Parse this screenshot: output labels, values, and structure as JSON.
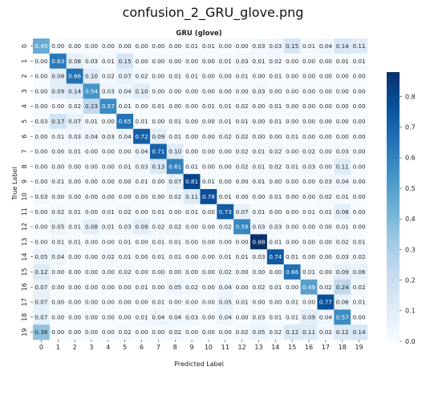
{
  "file_title": "confusion_2_GRU_glove.png",
  "chart_data": {
    "type": "heatmap",
    "title": "GRU (glove)",
    "xlabel": "Predicted Label",
    "ylabel": "True Label",
    "x_ticks": [
      "0",
      "1",
      "2",
      "3",
      "4",
      "5",
      "6",
      "7",
      "8",
      "9",
      "10",
      "11",
      "12",
      "13",
      "14",
      "15",
      "16",
      "17",
      "18",
      "19"
    ],
    "y_ticks": [
      "0",
      "1",
      "2",
      "3",
      "4",
      "5",
      "6",
      "7",
      "8",
      "9",
      "10",
      "11",
      "12",
      "13",
      "14",
      "15",
      "16",
      "17",
      "18",
      "19"
    ],
    "colorbar_ticks": [
      "0.0",
      "0.1",
      "0.2",
      "0.3",
      "0.4",
      "0.5",
      "0.6",
      "0.7",
      "0.8"
    ],
    "colorbar_range": [
      0,
      0.88
    ],
    "colormap": [
      "#f7fbff",
      "#deebf7",
      "#c6dbef",
      "#9ecae1",
      "#6baed6",
      "#4292c6",
      "#2171b5",
      "#08519c",
      "#08306b"
    ],
    "matrix": [
      [
        0.45,
        0.0,
        0.0,
        0.0,
        0.0,
        0.0,
        0.0,
        0.0,
        0.0,
        0.01,
        0.01,
        0.0,
        0.0,
        0.03,
        0.03,
        0.15,
        0.01,
        0.04,
        0.14,
        0.11
      ],
      [
        0.0,
        0.63,
        0.08,
        0.03,
        0.01,
        0.15,
        0.0,
        0.0,
        0.0,
        0.0,
        0.0,
        0.01,
        0.03,
        0.01,
        0.02,
        0.0,
        0.0,
        0.0,
        0.01,
        0.01
      ],
      [
        0.0,
        0.08,
        0.66,
        0.1,
        0.02,
        0.07,
        0.02,
        0.0,
        0.01,
        0.01,
        0.0,
        0.0,
        0.01,
        0.0,
        0.01,
        0.0,
        0.0,
        0.0,
        0.0,
        0.0
      ],
      [
        0.0,
        0.09,
        0.14,
        0.54,
        0.03,
        0.04,
        0.1,
        0.0,
        0.0,
        0.0,
        0.0,
        0.0,
        0.0,
        0.03,
        0.0,
        0.0,
        0.0,
        0.0,
        0.0,
        0.0
      ],
      [
        0.0,
        0.0,
        0.02,
        0.23,
        0.57,
        0.01,
        0.0,
        0.01,
        0.0,
        0.0,
        0.01,
        0.01,
        0.02,
        0.0,
        0.01,
        0.0,
        0.0,
        0.0,
        0.0,
        0.0
      ],
      [
        0.03,
        0.17,
        0.07,
        0.01,
        0.0,
        0.65,
        0.01,
        0.0,
        0.01,
        0.0,
        0.0,
        0.01,
        0.01,
        0.0,
        0.01,
        0.0,
        0.0,
        0.0,
        0.0,
        0.0
      ],
      [
        0.0,
        0.01,
        0.03,
        0.04,
        0.03,
        0.04,
        0.72,
        0.09,
        0.01,
        0.0,
        0.0,
        0.02,
        0.02,
        0.0,
        0.0,
        0.01,
        0.0,
        0.0,
        0.0,
        0.0
      ],
      [
        0.0,
        0.0,
        0.01,
        0.0,
        0.0,
        0.0,
        0.04,
        0.71,
        0.1,
        0.0,
        0.0,
        0.0,
        0.02,
        0.01,
        0.02,
        0.0,
        0.02,
        0.0,
        0.03,
        0.0
      ],
      [
        0.0,
        0.0,
        0.0,
        0.0,
        0.0,
        0.01,
        0.03,
        0.13,
        0.61,
        0.01,
        0.0,
        0.0,
        0.02,
        0.01,
        0.02,
        0.01,
        0.03,
        0.0,
        0.11,
        0.0
      ],
      [
        0.0,
        0.01,
        0.0,
        0.0,
        0.0,
        0.0,
        0.01,
        0.0,
        0.07,
        0.81,
        0.01,
        0.0,
        0.0,
        0.01,
        0.0,
        0.0,
        0.0,
        0.03,
        0.04,
        0.0
      ],
      [
        0.03,
        0.0,
        0.0,
        0.0,
        0.0,
        0.0,
        0.0,
        0.0,
        0.02,
        0.11,
        0.78,
        0.01,
        0.0,
        0.0,
        0.01,
        0.0,
        0.0,
        0.02,
        0.01,
        0.0
      ],
      [
        0.0,
        0.02,
        0.01,
        0.0,
        0.01,
        0.02,
        0.0,
        0.01,
        0.0,
        0.01,
        0.0,
        0.73,
        0.07,
        0.01,
        0.0,
        0.0,
        0.01,
        0.01,
        0.08,
        0.0
      ],
      [
        0.0,
        0.05,
        0.01,
        0.08,
        0.01,
        0.03,
        0.09,
        0.02,
        0.02,
        0.0,
        0.0,
        0.02,
        0.59,
        0.03,
        0.03,
        0.0,
        0.0,
        0.0,
        0.01,
        0.0
      ],
      [
        0.0,
        0.01,
        0.01,
        0.0,
        0.0,
        0.01,
        0.0,
        0.01,
        0.01,
        0.0,
        0.0,
        0.0,
        0.0,
        0.88,
        0.01,
        0.0,
        0.0,
        0.0,
        0.02,
        0.01
      ],
      [
        0.05,
        0.04,
        0.0,
        0.0,
        0.02,
        0.01,
        0.0,
        0.01,
        0.01,
        0.0,
        0.0,
        0.01,
        0.01,
        0.03,
        0.74,
        0.01,
        0.0,
        0.0,
        0.03,
        0.02
      ],
      [
        0.12,
        0.0,
        0.0,
        0.0,
        0.0,
        0.02,
        0.0,
        0.0,
        0.0,
        0.0,
        0.0,
        0.02,
        0.0,
        0.0,
        0.0,
        0.66,
        0.01,
        0.0,
        0.09,
        0.06
      ],
      [
        0.07,
        0.0,
        0.0,
        0.0,
        0.0,
        0.0,
        0.01,
        0.0,
        0.05,
        0.02,
        0.0,
        0.04,
        0.0,
        0.02,
        0.01,
        0.0,
        0.49,
        0.02,
        0.24,
        0.02
      ],
      [
        0.07,
        0.0,
        0.0,
        0.0,
        0.0,
        0.0,
        0.0,
        0.01,
        0.0,
        0.0,
        0.0,
        0.05,
        0.01,
        0.0,
        0.0,
        0.01,
        0.0,
        0.77,
        0.06,
        0.01
      ],
      [
        0.07,
        0.0,
        0.0,
        0.0,
        0.0,
        0.0,
        0.01,
        0.04,
        0.04,
        0.03,
        0.0,
        0.04,
        0.0,
        0.03,
        0.01,
        0.01,
        0.09,
        0.04,
        0.57,
        0.0
      ],
      [
        0.36,
        0.0,
        0.0,
        0.0,
        0.0,
        0.02,
        0.0,
        0.0,
        0.02,
        0.0,
        0.0,
        0.0,
        0.02,
        0.05,
        0.02,
        0.12,
        0.11,
        0.02,
        0.12,
        0.14
      ]
    ]
  }
}
